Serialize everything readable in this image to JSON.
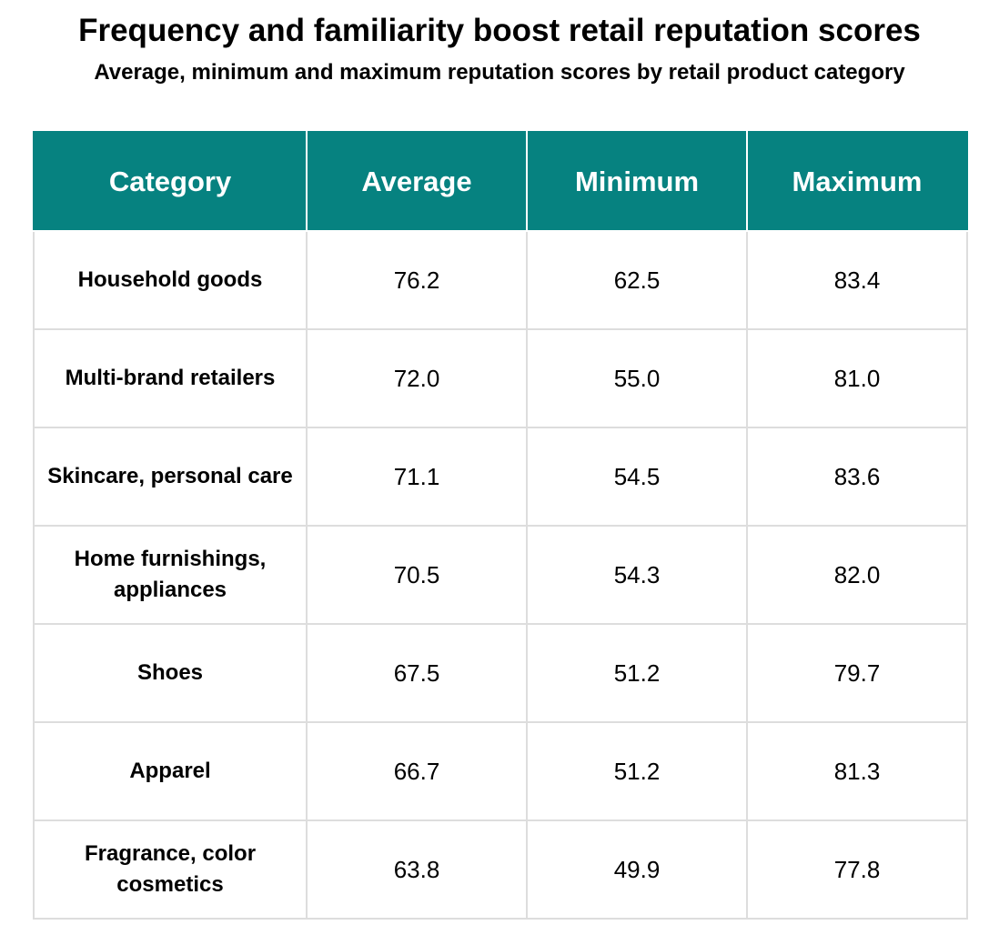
{
  "title": "Frequency and familiarity boost retail reputation scores",
  "subtitle": "Average, minimum and maximum reputation scores by retail product category",
  "colors": {
    "header_background": "#068280",
    "header_text": "#ffffff",
    "grid_line": "#dddddd"
  },
  "chart_data": {
    "type": "table",
    "title": "Frequency and familiarity boost retail reputation scores",
    "subtitle": "Average, minimum and maximum reputation scores by retail product category",
    "columns": [
      "Category",
      "Average",
      "Minimum",
      "Maximum"
    ],
    "rows": [
      [
        "Household goods",
        "76.2",
        "62.5",
        "83.4"
      ],
      [
        "Multi-brand retailers",
        "72.0",
        "55.0",
        "81.0"
      ],
      [
        "Skincare, personal care",
        "71.1",
        "54.5",
        "83.6"
      ],
      [
        "Home furnishings, appliances",
        "70.5",
        "54.3",
        "82.0"
      ],
      [
        "Shoes",
        "67.5",
        "51.2",
        "79.7"
      ],
      [
        "Apparel",
        "66.7",
        "51.2",
        "81.3"
      ],
      [
        "Fragrance, color cosmetics",
        "63.8",
        "49.9",
        "77.8"
      ]
    ]
  }
}
